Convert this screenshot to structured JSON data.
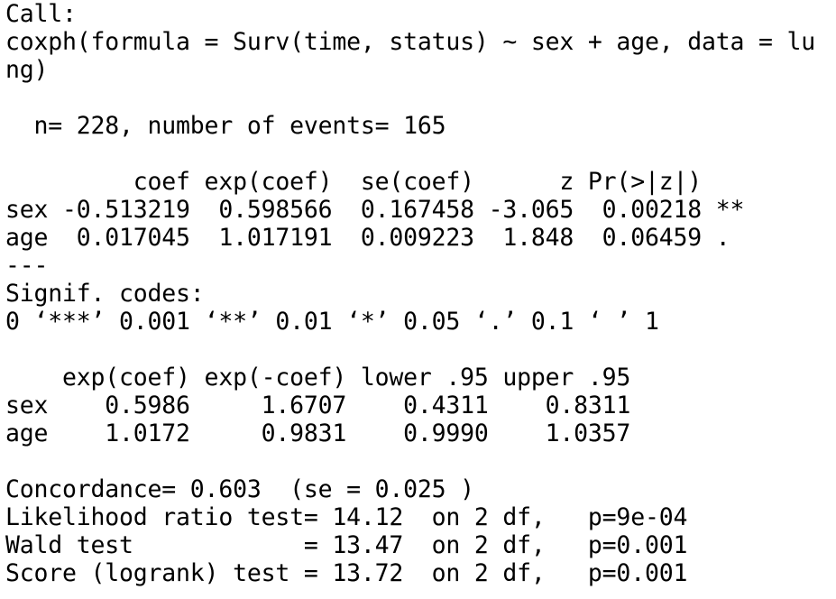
{
  "console": {
    "call_label": "Call:",
    "call_line1": "coxph(formula = Surv(time, status) ~ sex + age, data = lu",
    "call_line2": "ng)",
    "blank1": "",
    "n_line": "  n= 228, number of events= 165",
    "blank2": "",
    "coef_header": "         coef exp(coef)  se(coef)      z Pr(>|z|)",
    "coef_row_sex": "sex -0.513219  0.598566  0.167458 -3.065  0.00218 **",
    "coef_row_age": "age  0.017045  1.017191  0.009223  1.848  0.06459 .",
    "separator": "---",
    "signif_label": "Signif. codes:",
    "signif_codes": "0 ‘***’ 0.001 ‘**’ 0.01 ‘*’ 0.05 ‘.’ 0.1 ‘ ’ 1",
    "blank3": "",
    "ci_header": "    exp(coef) exp(-coef) lower .95 upper .95",
    "ci_row_sex": "sex    0.5986     1.6707    0.4311    0.8311",
    "ci_row_age": "age    1.0172     0.9831    0.9990    1.0357",
    "blank4": "",
    "concordance": "Concordance= 0.603  (se = 0.025 )",
    "lr_test": "Likelihood ratio test= 14.12  on 2 df,   p=9e-04",
    "wald_test": "Wald test            = 13.47  on 2 df,   p=0.001",
    "score_test": "Score (logrank) test = 13.72  on 2 df,   p=0.001"
  }
}
